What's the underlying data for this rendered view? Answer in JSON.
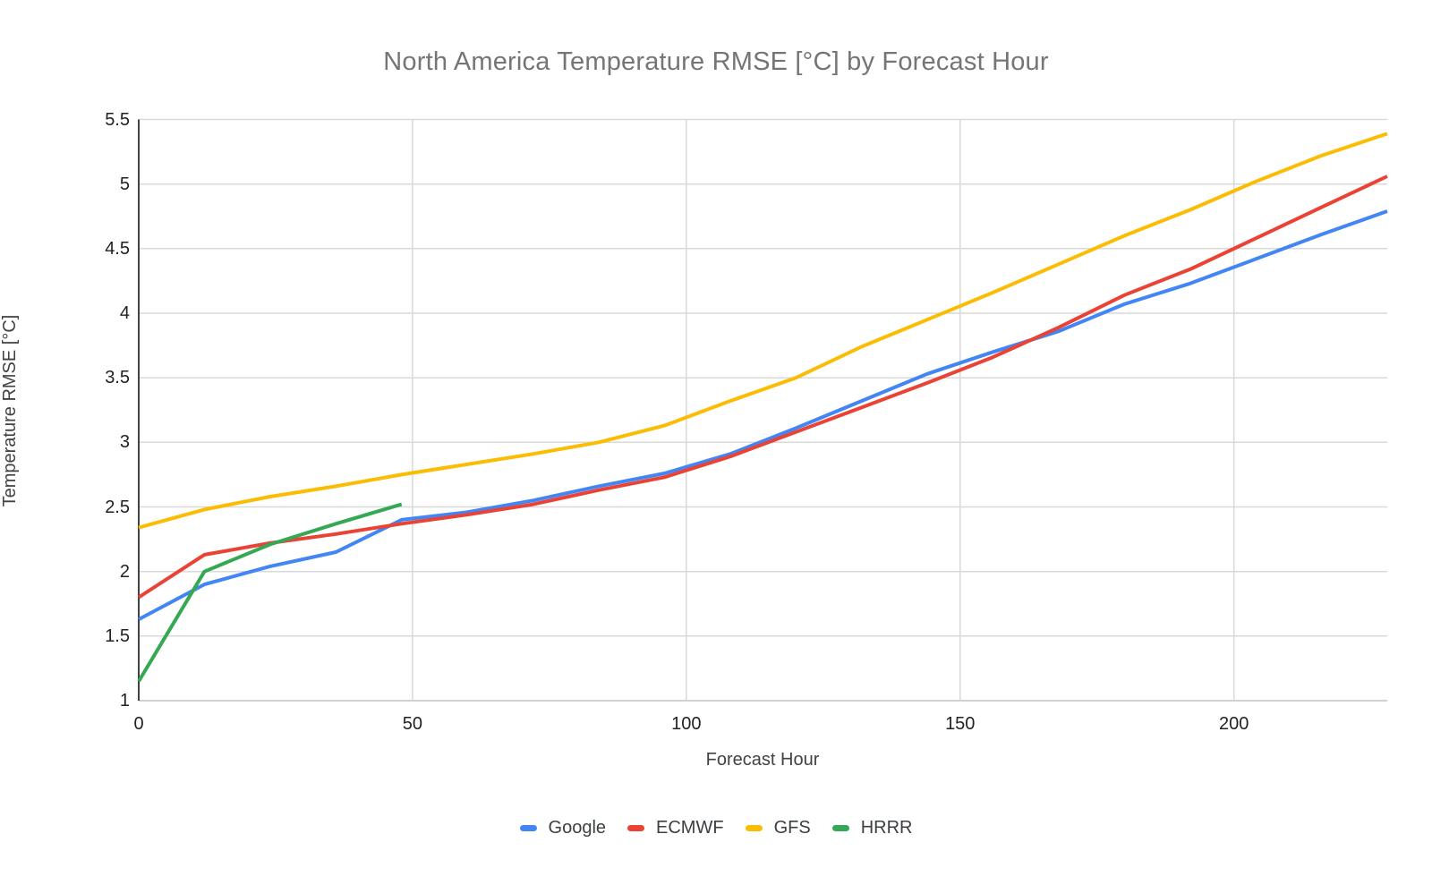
{
  "chart_data": {
    "type": "line",
    "title": "North America Temperature RMSE [°C] by Forecast Hour",
    "xlabel": "Forecast Hour",
    "ylabel": "Temperature RMSE [°C]",
    "xlim": [
      0,
      228
    ],
    "ylim": [
      1,
      5.5
    ],
    "x_ticks": [
      0,
      50,
      100,
      150,
      200
    ],
    "y_ticks": [
      1,
      1.5,
      2,
      2.5,
      3,
      3.5,
      4,
      4.5,
      5,
      5.5
    ],
    "grid": true,
    "legend_position": "bottom",
    "series": [
      {
        "name": "Google",
        "color": "#4285F4",
        "x": [
          0,
          12,
          24,
          36,
          48,
          60,
          72,
          84,
          96,
          108,
          120,
          132,
          144,
          156,
          168,
          180,
          192,
          204,
          216,
          228
        ],
        "values": [
          1.63,
          1.9,
          2.04,
          2.15,
          2.4,
          2.46,
          2.55,
          2.66,
          2.76,
          2.91,
          3.11,
          3.32,
          3.53,
          3.7,
          3.86,
          4.07,
          4.23,
          4.42,
          4.61,
          4.79
        ]
      },
      {
        "name": "ECMWF",
        "color": "#EA4335",
        "x": [
          0,
          12,
          24,
          36,
          48,
          60,
          72,
          84,
          96,
          108,
          120,
          132,
          144,
          156,
          168,
          180,
          192,
          204,
          216,
          228
        ],
        "values": [
          1.8,
          2.13,
          2.22,
          2.29,
          2.37,
          2.44,
          2.52,
          2.63,
          2.73,
          2.89,
          3.08,
          3.27,
          3.46,
          3.66,
          3.89,
          4.14,
          4.34,
          4.58,
          4.82,
          5.06
        ]
      },
      {
        "name": "GFS",
        "color": "#FBBC04",
        "x": [
          0,
          12,
          24,
          36,
          48,
          60,
          72,
          84,
          96,
          108,
          120,
          132,
          144,
          156,
          168,
          180,
          192,
          204,
          216,
          228
        ],
        "values": [
          2.34,
          2.48,
          2.58,
          2.66,
          2.75,
          2.83,
          2.91,
          3.0,
          3.13,
          3.32,
          3.5,
          3.74,
          3.95,
          4.16,
          4.38,
          4.6,
          4.8,
          5.02,
          5.22,
          5.39
        ]
      },
      {
        "name": "HRRR",
        "color": "#34A853",
        "x": [
          0,
          12,
          24,
          36,
          48
        ],
        "values": [
          1.15,
          2.0,
          2.21,
          2.37,
          2.52
        ]
      }
    ]
  },
  "colors": {
    "background": "#ffffff",
    "grid": "#d9d9d9",
    "baseline": "#c2c2c2",
    "axis": "#424242",
    "title_text": "#757575",
    "tick_text": "#222222",
    "axis_title_text": "#424242",
    "legend_text": "#3c4043"
  }
}
